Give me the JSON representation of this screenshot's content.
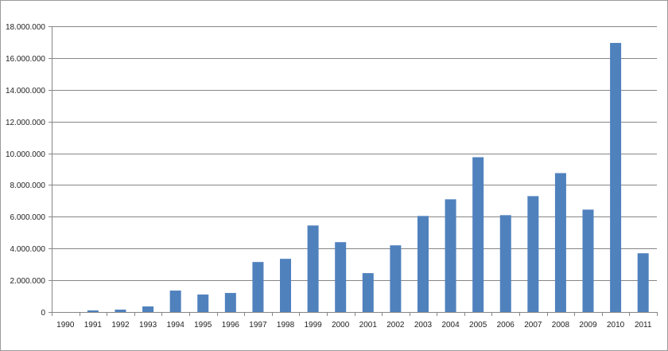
{
  "chart_data": {
    "type": "bar",
    "categories": [
      "1990",
      "1991",
      "1992",
      "1993",
      "1994",
      "1995",
      "1996",
      "1997",
      "1998",
      "1999",
      "2000",
      "2001",
      "2002",
      "2003",
      "2004",
      "2005",
      "2006",
      "2007",
      "2008",
      "2009",
      "2010",
      "2011"
    ],
    "values": [
      0,
      100000,
      150000,
      350000,
      1350000,
      1100000,
      1200000,
      3150000,
      3350000,
      5450000,
      4400000,
      2450000,
      4200000,
      6050000,
      7100000,
      9750000,
      6100000,
      7300000,
      8750000,
      6450000,
      16950000,
      3700000
    ],
    "ylim": [
      0,
      18000000
    ],
    "yticks": [
      0,
      2000000,
      4000000,
      6000000,
      8000000,
      10000000,
      12000000,
      14000000,
      16000000,
      18000000
    ],
    "ytick_labels": [
      "0",
      "2.000.000",
      "4.000.000",
      "6.000.000",
      "8.000.000",
      "10.000.000",
      "12.000.000",
      "14.000.000",
      "16.000.000",
      "18.000.000"
    ],
    "title": "",
    "xlabel": "",
    "ylabel": "",
    "grid": true,
    "legend": "none",
    "bar_color": "#4f81bd",
    "grid_color": "#868686"
  }
}
